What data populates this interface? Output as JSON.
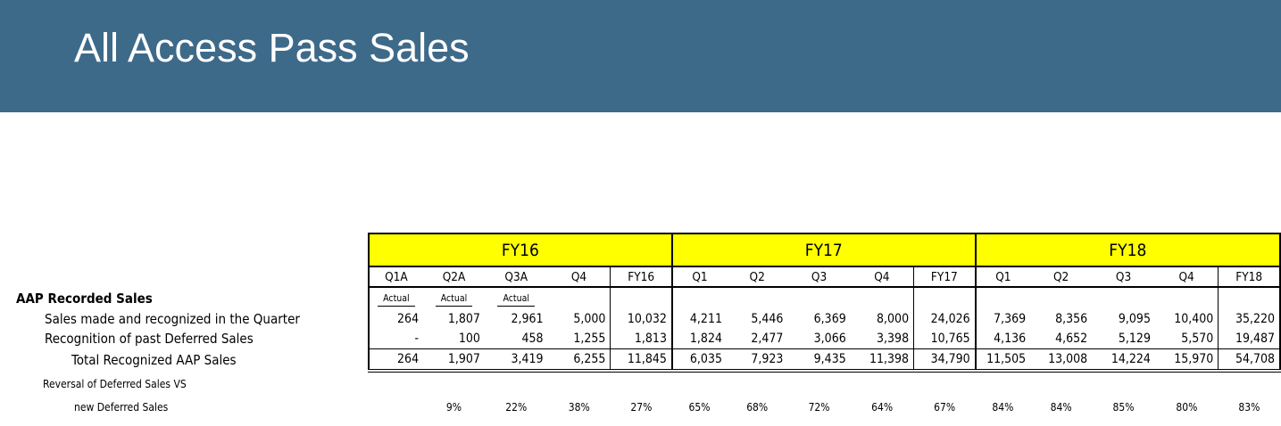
{
  "header": {
    "title": "All Access Pass Sales"
  },
  "table": {
    "fiscal_years": [
      {
        "label": "FY16",
        "columns": [
          "Q1A",
          "Q2A",
          "Q3A",
          "Q4",
          "FY16"
        ],
        "status": [
          "Actual",
          "Actual",
          "Actual",
          "",
          ""
        ],
        "sales_in_quarter": [
          "264",
          "1,807",
          "2,961",
          "5,000",
          "10,032"
        ],
        "recognition_deferred": [
          "-",
          "100",
          "458",
          "1,255",
          "1,813"
        ],
        "total": [
          "264",
          "1,907",
          "3,419",
          "6,255",
          "11,845"
        ],
        "reversal_pct": [
          "",
          "9%",
          "22%",
          "38%",
          "27%"
        ]
      },
      {
        "label": "FY17",
        "columns": [
          "Q1",
          "Q2",
          "Q3",
          "Q4",
          "FY17"
        ],
        "status": [
          "",
          "",
          "",
          "",
          ""
        ],
        "sales_in_quarter": [
          "4,211",
          "5,446",
          "6,369",
          "8,000",
          "24,026"
        ],
        "recognition_deferred": [
          "1,824",
          "2,477",
          "3,066",
          "3,398",
          "10,765"
        ],
        "total": [
          "6,035",
          "7,923",
          "9,435",
          "11,398",
          "34,790"
        ],
        "reversal_pct": [
          "65%",
          "68%",
          "72%",
          "64%",
          "67%"
        ]
      },
      {
        "label": "FY18",
        "columns": [
          "Q1",
          "Q2",
          "Q3",
          "Q4",
          "FY18"
        ],
        "status": [
          "",
          "",
          "",
          "",
          ""
        ],
        "sales_in_quarter": [
          "7,369",
          "8,356",
          "9,095",
          "10,400",
          "35,220"
        ],
        "recognition_deferred": [
          "4,136",
          "4,652",
          "5,129",
          "5,570",
          "19,487"
        ],
        "total": [
          "11,505",
          "13,008",
          "14,224",
          "15,970",
          "54,708"
        ],
        "reversal_pct": [
          "84%",
          "84%",
          "85%",
          "80%",
          "83%"
        ]
      }
    ],
    "row_labels": {
      "section": "AAP Recorded Sales",
      "sales_in_quarter": "Sales made and recognized in the Quarter",
      "recognition_deferred": "Recognition of past Deferred Sales",
      "total": "Total Recognized AAP Sales",
      "reversal_line1": "Reversal of Deferred Sales VS",
      "reversal_line2": "new Deferred Sales"
    }
  }
}
